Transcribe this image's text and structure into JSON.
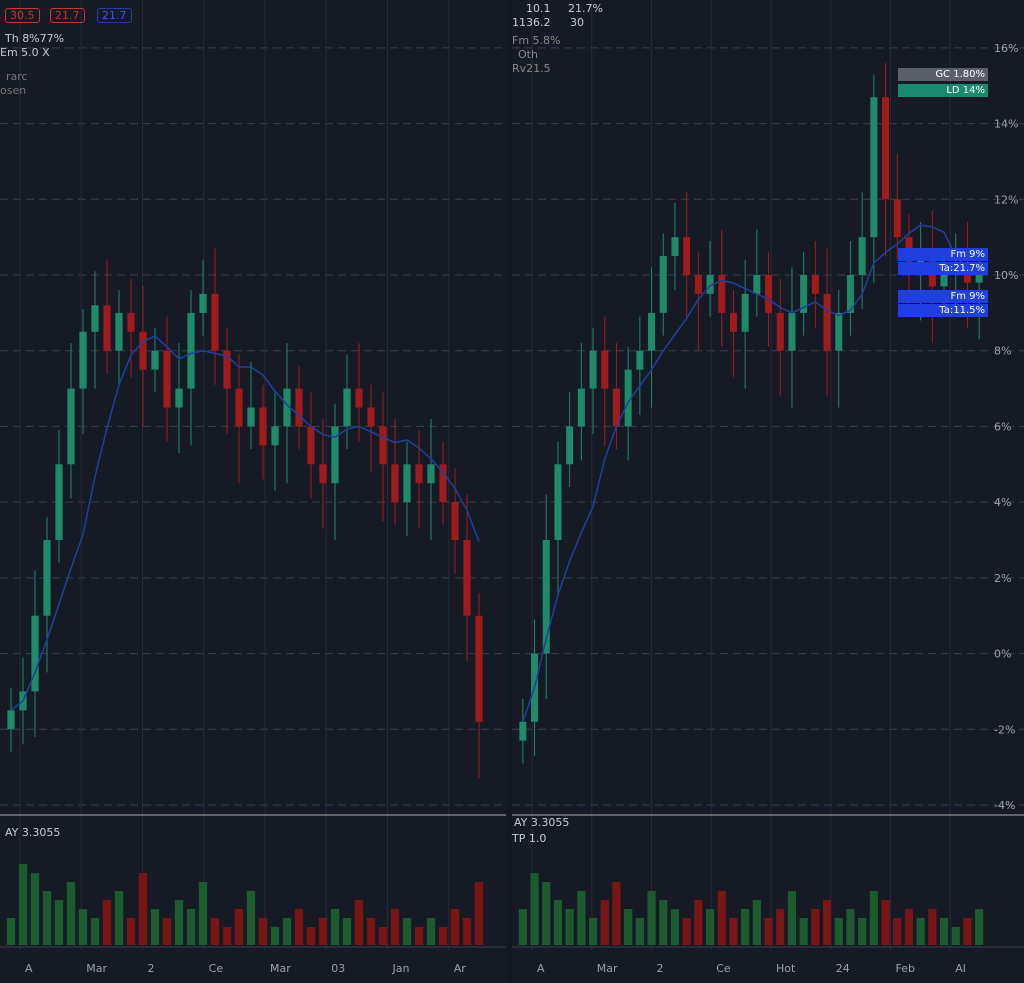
{
  "chart_data": [
    {
      "type": "candlestick",
      "pane": "left",
      "closes": [
        -1.5,
        -1,
        1,
        3,
        5,
        7,
        8.5,
        9.2,
        8,
        9,
        8.5,
        7.5,
        8,
        6.5,
        7,
        9,
        9.5,
        8,
        7,
        6,
        6.5,
        5.5,
        6,
        7,
        6,
        5,
        4.5,
        6,
        7,
        6.5,
        6,
        5,
        4,
        5,
        4.5,
        5,
        4,
        3,
        1,
        -1.8
      ],
      "volume": [
        3,
        9,
        8,
        6,
        5,
        7,
        4,
        3,
        5,
        6,
        3,
        8,
        4,
        3,
        5,
        4,
        7,
        3,
        2,
        4,
        6,
        3,
        2,
        3,
        4,
        2,
        3,
        4,
        3,
        5,
        3,
        2,
        4,
        3,
        2,
        3,
        2,
        4,
        3,
        7
      ],
      "ylim": [
        -4,
        17
      ],
      "xticks": [
        "A",
        "Mar",
        "2",
        "Ce",
        "Mar",
        "03",
        "Jan",
        "Ar"
      ]
    },
    {
      "type": "candlestick",
      "pane": "right",
      "closes": [
        -1.8,
        0,
        3,
        5,
        6,
        7,
        8,
        7,
        6,
        7.5,
        8,
        9,
        10.5,
        11,
        10,
        9.5,
        10,
        9,
        8.5,
        9.5,
        10,
        9,
        8,
        9,
        10,
        9.5,
        8,
        9,
        10,
        11,
        14.7,
        12,
        11,
        10,
        10.5,
        9.7,
        10,
        10.2,
        9.8,
        10
      ],
      "volume": [
        4,
        8,
        7,
        5,
        4,
        6,
        3,
        5,
        7,
        4,
        3,
        6,
        5,
        4,
        3,
        5,
        4,
        6,
        3,
        4,
        5,
        3,
        4,
        6,
        3,
        4,
        5,
        3,
        4,
        3,
        6,
        5,
        3,
        4,
        3,
        4,
        3,
        2,
        3,
        4
      ],
      "ylim": [
        -4,
        17
      ],
      "yticks": [
        "16%",
        "14%",
        "12%",
        "10%",
        "8%",
        "6%",
        "4%",
        "2%",
        "0%",
        "-2%",
        "-4%"
      ],
      "xticks": [
        "A",
        "Mar",
        "2",
        "Ce",
        "Hot",
        "24",
        "Feb",
        "Al"
      ]
    }
  ],
  "colors": {
    "up": "#1f8a6a",
    "down": "#a01c1c",
    "ma": "#1f3fa0",
    "bg": "#161a24"
  },
  "legend_left": {
    "sym1": "30.5",
    "sym2": "21.7",
    "sym3": "21.7",
    "line1": "Th 8%77%",
    "line2": "Em 5.0 X",
    "line3": "rarc",
    "line4": "osen"
  },
  "legend_right": {
    "v1": "10.1",
    "v2": "21.7%",
    "v3": "1136.2",
    "v4": "30",
    "line1": "Fm 5.8%",
    "line2": "Oth",
    "line3": "Rv21.5"
  },
  "tags": {
    "gc": "GC 1.80%",
    "ld": "LD 14%",
    "fm1": "Fm 9%",
    "ta1": "Ta:21.7%",
    "fm2": "Fm 9%",
    "ta2": "Ta:11.5%"
  },
  "volume_legend": {
    "left": "AY 3.3055",
    "right_a": "AY 3.3055",
    "right_b": "TP 1.0"
  }
}
